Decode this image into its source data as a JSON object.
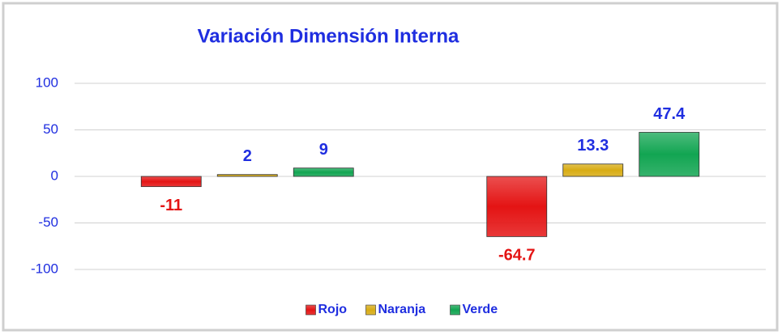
{
  "chart_data": {
    "type": "bar",
    "title": "Variación Dimensión Interna",
    "categories": [
      null,
      null
    ],
    "series": [
      {
        "name": "Rojo",
        "color": "#e41414",
        "label_color": "#e41414",
        "values": [
          -11,
          -64.7
        ]
      },
      {
        "name": "Naranja",
        "color": "#d8ac14",
        "label_color": "#1f2ee0",
        "values": [
          2,
          13.3
        ]
      },
      {
        "name": "Verde",
        "color": "#12a552",
        "label_color": "#1f2ee0",
        "values": [
          9,
          47.4
        ]
      }
    ],
    "ylim": [
      -100,
      100
    ],
    "yticks": [
      -100,
      -50,
      0,
      50,
      100
    ],
    "grid": true,
    "legend": "bottom"
  }
}
